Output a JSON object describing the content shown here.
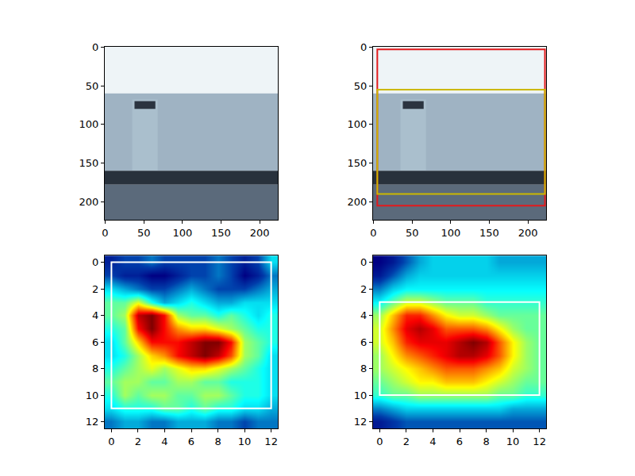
{
  "chart_data": [
    {
      "type": "image",
      "xlim": [
        -0.5,
        223.5
      ],
      "ylim": [
        223.5,
        -0.5
      ],
      "xticks": [
        0,
        50,
        100,
        150,
        200
      ],
      "yticks": [
        0,
        50,
        100,
        150,
        200
      ],
      "scene": [
        {
          "x0": -0.5,
          "y0": -0.5,
          "x1": 223.5,
          "y1": 60,
          "color": "#eef4f7"
        },
        {
          "x0": -0.5,
          "y0": 60,
          "x1": 223.5,
          "y1": 160,
          "color": "#9fb3c3"
        },
        {
          "x0": 35,
          "y0": 68,
          "x1": 68,
          "y1": 160,
          "color": "#aabfcd"
        },
        {
          "x0": 38,
          "y0": 70,
          "x1": 65,
          "y1": 80,
          "color": "#2b3440"
        },
        {
          "x0": -0.5,
          "y0": 160,
          "x1": 223.5,
          "y1": 178,
          "color": "#28313c"
        },
        {
          "x0": -0.5,
          "y0": 178,
          "x1": 223.5,
          "y1": 223.5,
          "color": "#5b6a7b"
        }
      ],
      "boxes": []
    },
    {
      "type": "image",
      "xlim": [
        -0.5,
        223.5
      ],
      "ylim": [
        223.5,
        -0.5
      ],
      "xticks": [
        0,
        50,
        100,
        150,
        200
      ],
      "yticks": [
        0,
        50,
        100,
        150,
        200
      ],
      "scene": [
        {
          "x0": -0.5,
          "y0": -0.5,
          "x1": 223.5,
          "y1": 60,
          "color": "#eef4f7"
        },
        {
          "x0": -0.5,
          "y0": 60,
          "x1": 223.5,
          "y1": 160,
          "color": "#9fb3c3"
        },
        {
          "x0": 35,
          "y0": 68,
          "x1": 68,
          "y1": 160,
          "color": "#aabfcd"
        },
        {
          "x0": 38,
          "y0": 70,
          "x1": 65,
          "y1": 80,
          "color": "#2b3440"
        },
        {
          "x0": -0.5,
          "y0": 160,
          "x1": 223.5,
          "y1": 178,
          "color": "#28313c"
        },
        {
          "x0": -0.5,
          "y0": 178,
          "x1": 223.5,
          "y1": 223.5,
          "color": "#5b6a7b"
        }
      ],
      "boxes": [
        {
          "x0": 5,
          "y0": 3,
          "x1": 222,
          "y1": 205,
          "color": "#e31a1c"
        },
        {
          "x0": 5,
          "y0": 55,
          "x1": 222,
          "y1": 190,
          "color": "#ccb800"
        }
      ]
    },
    {
      "type": "heatmap",
      "color": "Jet",
      "xlim": [
        -0.5,
        12.5
      ],
      "ylim": [
        12.5,
        -0.5
      ],
      "xticks": [
        0,
        2,
        4,
        6,
        8,
        10,
        12
      ],
      "yticks": [
        0,
        2,
        4,
        6,
        8,
        10,
        12
      ],
      "z": [
        [
          0.25,
          0.3,
          0.3,
          0.35,
          0.3,
          0.3,
          0.3,
          0.3,
          0.35,
          0.3,
          0.25,
          0.3,
          0.45
        ],
        [
          0.3,
          0.25,
          0.25,
          0.2,
          0.2,
          0.25,
          0.3,
          0.3,
          0.35,
          0.3,
          0.2,
          0.25,
          0.35
        ],
        [
          0.45,
          0.4,
          0.35,
          0.3,
          0.3,
          0.35,
          0.4,
          0.35,
          0.3,
          0.3,
          0.3,
          0.35,
          0.4
        ],
        [
          0.55,
          0.55,
          0.65,
          0.5,
          0.4,
          0.45,
          0.5,
          0.45,
          0.4,
          0.4,
          0.45,
          0.45,
          0.45
        ],
        [
          0.55,
          0.6,
          0.9,
          0.95,
          0.85,
          0.6,
          0.55,
          0.55,
          0.5,
          0.55,
          0.5,
          0.45,
          0.5
        ],
        [
          0.5,
          0.55,
          0.85,
          0.95,
          0.85,
          0.75,
          0.7,
          0.7,
          0.65,
          0.6,
          0.55,
          0.5,
          0.5
        ],
        [
          0.45,
          0.55,
          0.7,
          0.85,
          0.85,
          0.85,
          0.9,
          0.95,
          0.95,
          0.85,
          0.6,
          0.55,
          0.5
        ],
        [
          0.45,
          0.5,
          0.6,
          0.7,
          0.75,
          0.85,
          0.9,
          0.95,
          0.9,
          0.8,
          0.6,
          0.55,
          0.45
        ],
        [
          0.5,
          0.55,
          0.6,
          0.65,
          0.6,
          0.65,
          0.7,
          0.7,
          0.65,
          0.6,
          0.55,
          0.5,
          0.45
        ],
        [
          0.55,
          0.6,
          0.6,
          0.55,
          0.55,
          0.6,
          0.6,
          0.55,
          0.55,
          0.5,
          0.5,
          0.5,
          0.45
        ],
        [
          0.5,
          0.6,
          0.55,
          0.6,
          0.6,
          0.55,
          0.55,
          0.6,
          0.6,
          0.55,
          0.5,
          0.5,
          0.45
        ],
        [
          0.45,
          0.5,
          0.5,
          0.5,
          0.55,
          0.55,
          0.5,
          0.55,
          0.5,
          0.5,
          0.45,
          0.45,
          0.4
        ],
        [
          0.35,
          0.4,
          0.4,
          0.35,
          0.35,
          0.4,
          0.4,
          0.4,
          0.35,
          0.35,
          0.3,
          0.35,
          0.35
        ]
      ],
      "boxes": [
        {
          "x0": 0,
          "y0": 0,
          "x1": 12,
          "y1": 11,
          "color": "#ffffff"
        }
      ]
    },
    {
      "type": "heatmap",
      "color": "Jet",
      "xlim": [
        -0.5,
        12.5
      ],
      "ylim": [
        12.5,
        -0.5
      ],
      "xticks": [
        0,
        2,
        4,
        6,
        8,
        10,
        12
      ],
      "yticks": [
        0,
        2,
        4,
        6,
        8,
        10,
        12
      ],
      "z": [
        [
          0.05,
          0.1,
          0.2,
          0.3,
          0.35,
          0.35,
          0.35,
          0.35,
          0.35,
          0.3,
          0.3,
          0.3,
          0.3
        ],
        [
          0.1,
          0.2,
          0.3,
          0.35,
          0.35,
          0.35,
          0.35,
          0.35,
          0.35,
          0.35,
          0.35,
          0.35,
          0.35
        ],
        [
          0.25,
          0.35,
          0.4,
          0.4,
          0.4,
          0.4,
          0.4,
          0.4,
          0.4,
          0.4,
          0.4,
          0.4,
          0.4
        ],
        [
          0.4,
          0.5,
          0.6,
          0.6,
          0.55,
          0.5,
          0.5,
          0.5,
          0.45,
          0.45,
          0.45,
          0.45,
          0.45
        ],
        [
          0.55,
          0.7,
          0.85,
          0.85,
          0.75,
          0.65,
          0.6,
          0.6,
          0.55,
          0.5,
          0.5,
          0.5,
          0.5
        ],
        [
          0.6,
          0.75,
          0.9,
          0.95,
          0.9,
          0.8,
          0.8,
          0.8,
          0.75,
          0.65,
          0.55,
          0.5,
          0.5
        ],
        [
          0.6,
          0.7,
          0.85,
          0.9,
          0.9,
          0.9,
          0.95,
          1.0,
          0.95,
          0.8,
          0.65,
          0.55,
          0.5
        ],
        [
          0.55,
          0.65,
          0.75,
          0.8,
          0.85,
          0.9,
          0.95,
          0.95,
          0.9,
          0.8,
          0.65,
          0.55,
          0.5
        ],
        [
          0.55,
          0.6,
          0.65,
          0.7,
          0.75,
          0.8,
          0.8,
          0.8,
          0.75,
          0.7,
          0.6,
          0.55,
          0.5
        ],
        [
          0.5,
          0.55,
          0.6,
          0.65,
          0.65,
          0.7,
          0.7,
          0.7,
          0.65,
          0.6,
          0.55,
          0.5,
          0.5
        ],
        [
          0.45,
          0.5,
          0.5,
          0.55,
          0.55,
          0.55,
          0.55,
          0.55,
          0.55,
          0.5,
          0.5,
          0.45,
          0.45
        ],
        [
          0.25,
          0.3,
          0.35,
          0.35,
          0.35,
          0.35,
          0.35,
          0.35,
          0.35,
          0.35,
          0.3,
          0.3,
          0.3
        ],
        [
          0.1,
          0.15,
          0.2,
          0.2,
          0.2,
          0.2,
          0.2,
          0.2,
          0.2,
          0.2,
          0.2,
          0.2,
          0.2
        ]
      ],
      "boxes": [
        {
          "x0": 0,
          "y0": 3,
          "x1": 12,
          "y1": 10,
          "color": "#ffffff"
        }
      ]
    }
  ]
}
